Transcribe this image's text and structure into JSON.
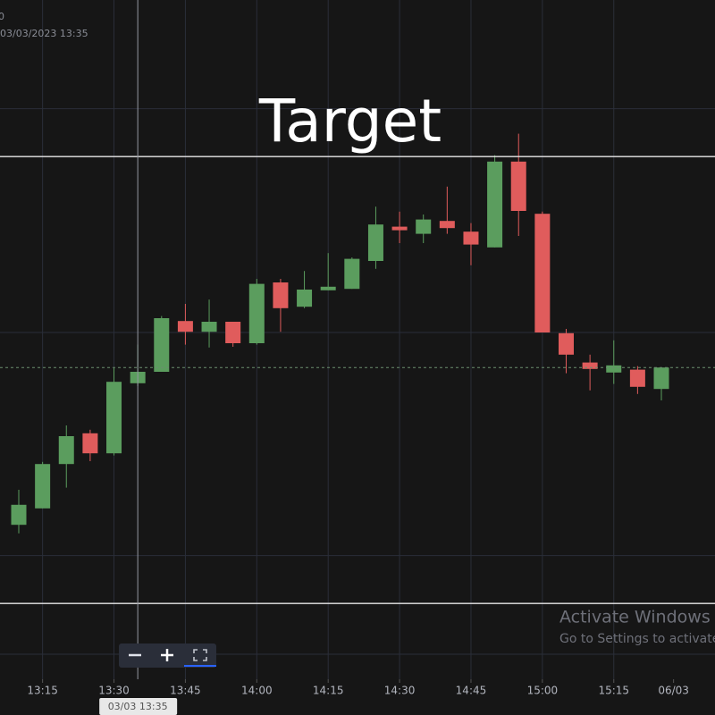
{
  "chart_data": {
    "type": "candlestick",
    "title": "Target",
    "header_text": "03/03/2023 13:35",
    "header_prefix": "0",
    "crosshair_label": "03/03 13:35",
    "crosshair_index": 5,
    "watermark_title": "Activate Windows",
    "watermark_text": "Go to Settings to activate",
    "categories": [
      null,
      "13:15",
      null,
      null,
      "13:30",
      null,
      null,
      "13:45",
      null,
      null,
      "14:00",
      null,
      null,
      "14:15",
      null,
      null,
      "14:30",
      null,
      null,
      "14:45",
      null,
      null,
      "15:00",
      null,
      null,
      "15:15",
      null,
      null,
      "06/03"
    ],
    "open": [
      21.6,
      23.9,
      30.1,
      34.4,
      31.6,
      41.4,
      43.0,
      50.1,
      48.6,
      50.0,
      47.0,
      55.5,
      52.1,
      54.4,
      54.6,
      58.5,
      63.3,
      62.3,
      64.1,
      62.6,
      60.4,
      72.4,
      65.1,
      48.4,
      44.3,
      42.9,
      43.3,
      40.6,
      null
    ],
    "high": [
      26.5,
      30.4,
      35.5,
      34.9,
      43.5,
      46.8,
      50.8,
      52.5,
      53.1,
      50.0,
      56.0,
      56.0,
      57.1,
      59.6,
      59.0,
      66.1,
      65.4,
      65.0,
      68.9,
      63.8,
      73.3,
      76.3,
      65.4,
      49.0,
      45.4,
      47.4,
      43.8,
      43.6,
      null
    ],
    "low": [
      20.4,
      23.9,
      26.8,
      30.5,
      31.3,
      41.0,
      43.0,
      46.8,
      46.4,
      46.5,
      46.8,
      48.6,
      51.9,
      54.4,
      54.6,
      57.4,
      61.0,
      61.0,
      62.3,
      57.9,
      60.4,
      62.0,
      48.5,
      42.8,
      40.4,
      41.3,
      39.9,
      39.0,
      null
    ],
    "close": [
      24.4,
      30.1,
      34.0,
      31.6,
      41.6,
      43.0,
      50.5,
      48.6,
      50.0,
      47.0,
      55.3,
      51.9,
      54.5,
      54.9,
      58.8,
      63.6,
      62.8,
      64.3,
      63.1,
      60.8,
      72.4,
      65.5,
      48.5,
      45.4,
      43.4,
      43.9,
      40.9,
      43.6,
      null
    ],
    "up_color": "#5b9d5e",
    "down_color": "#e05c5c",
    "ylim": [
      0,
      95
    ],
    "ygrid": [
      79.8,
      48.5,
      17.3,
      3.5
    ],
    "hlines": [
      73.1,
      10.6
    ],
    "current_price": 43.6,
    "grid": true
  }
}
